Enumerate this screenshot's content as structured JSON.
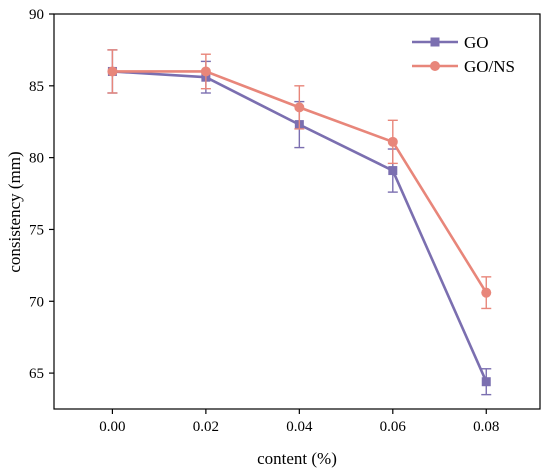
{
  "chart_data": {
    "type": "line",
    "title": "",
    "xlabel": "content (%)",
    "ylabel": "consistency (mm)",
    "x": [
      0.0,
      0.02,
      0.04,
      0.06,
      0.08
    ],
    "x_tick_labels": [
      "0.00",
      "0.02",
      "0.04",
      "0.06",
      "0.08"
    ],
    "xlim": [
      -0.0125,
      0.0915
    ],
    "ylim": [
      62.5,
      90
    ],
    "y_ticks": [
      65,
      70,
      75,
      80,
      85,
      90
    ],
    "y_tick_labels": [
      "65",
      "70",
      "75",
      "80",
      "85",
      "90"
    ],
    "grid": false,
    "legend_position": "top-right",
    "series": [
      {
        "name": "GO",
        "color": "#7b6fb0",
        "marker": "square",
        "values": [
          86.0,
          85.6,
          82.3,
          79.1,
          64.4
        ],
        "errors": [
          1.5,
          1.1,
          1.6,
          1.5,
          0.9
        ]
      },
      {
        "name": "GO/NS",
        "color": "#e8867a",
        "marker": "circle",
        "values": [
          86.0,
          86.0,
          83.5,
          81.1,
          70.6
        ],
        "errors": [
          1.5,
          1.2,
          1.5,
          1.5,
          1.1
        ]
      }
    ]
  }
}
